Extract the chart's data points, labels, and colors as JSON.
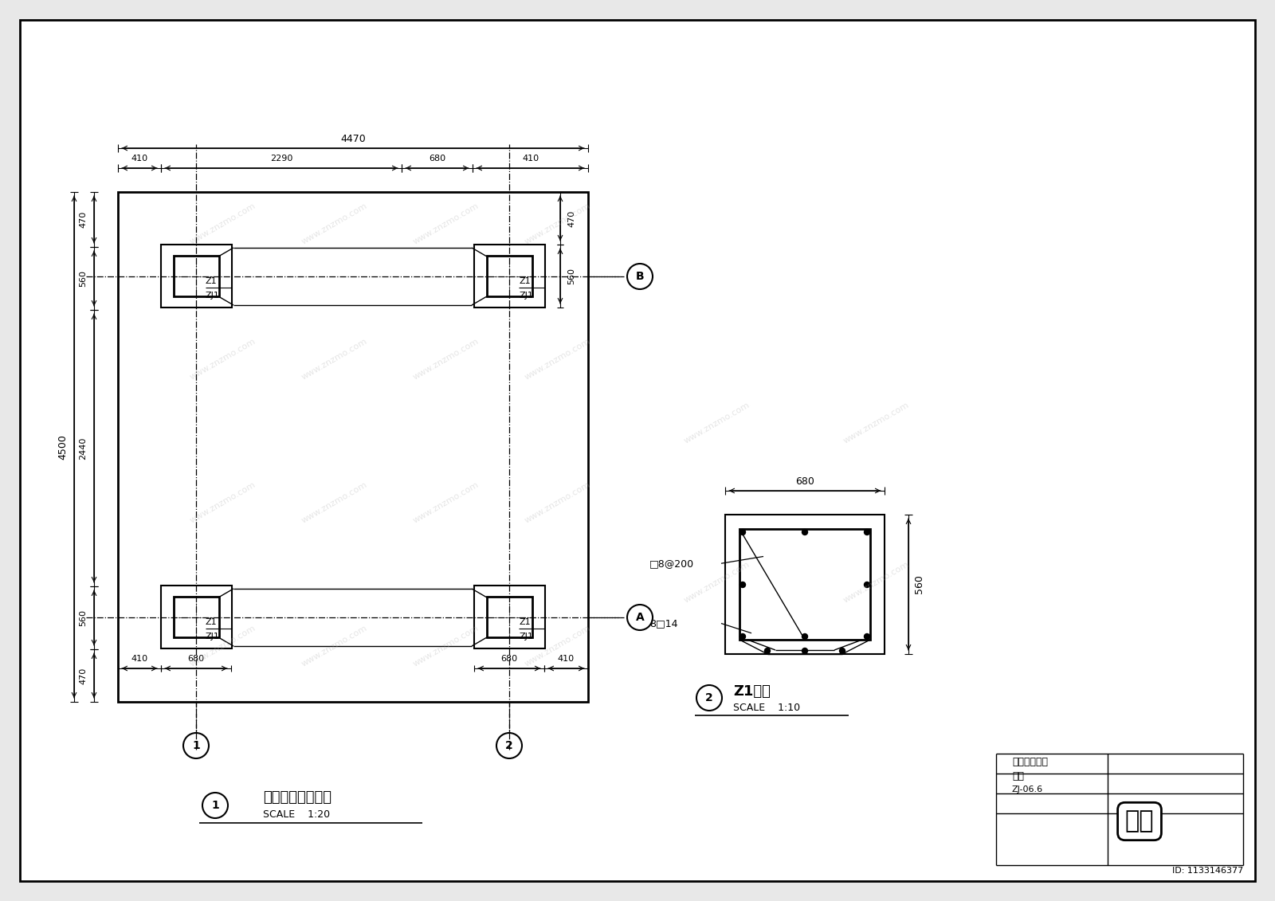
{
  "bg_color": "#e8e8e8",
  "page_bg": "#ffffff",
  "line_color": "#000000",
  "title1": "景观亭基础平面图",
  "scale1": "SCALE    1:20",
  "title2": "Z1大样",
  "scale2": "SCALE    1:10",
  "corner_title": "休息亭结构图",
  "corner_sub": "分云",
  "corner_num": "ZJ-06.6",
  "id_text": "ID: 1133146377"
}
